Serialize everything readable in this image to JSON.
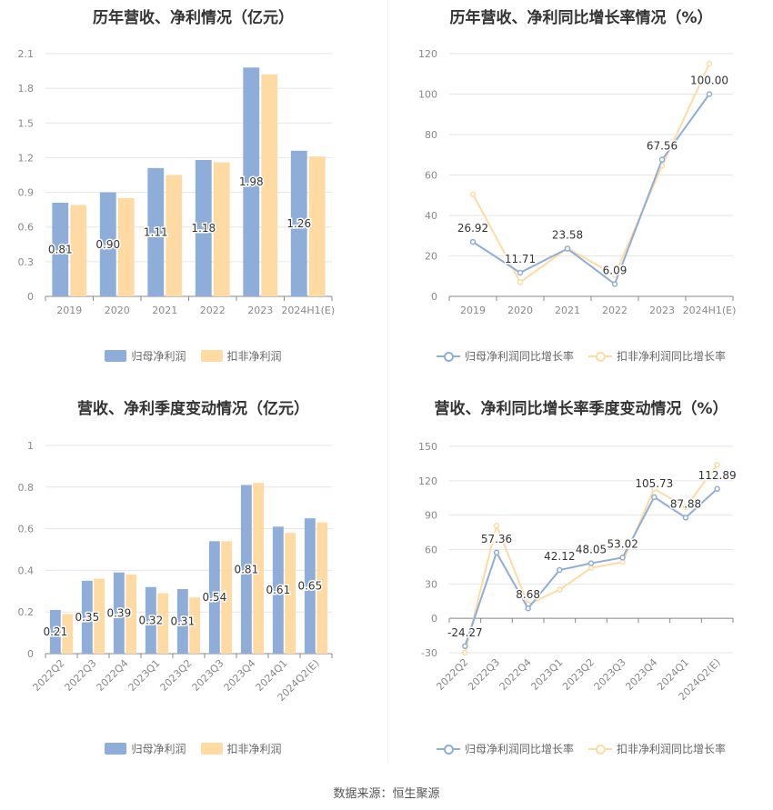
{
  "colors": {
    "primary": "#8EADD9",
    "secondary": "#FFDBA3",
    "label": "#333333",
    "axis_text": "#888888",
    "grid": "#e6e6e6"
  },
  "source": "数据来源：恒生聚源",
  "charts": [
    {
      "title": "历年营收、净利情况（亿元）",
      "legend": [
        "归母净利润",
        "扣非净利润"
      ]
    },
    {
      "title": "历年营收、净利同比增长率情况（%）",
      "legend": [
        "归母净利润同比增长率",
        "扣非净利润同比增长率"
      ]
    },
    {
      "title": "营收、净利季度变动情况（亿元）",
      "legend": [
        "归母净利润",
        "扣非净利润"
      ]
    },
    {
      "title": "营收、净利同比增长率季度变动情况（%）",
      "legend": [
        "归母净利润同比增长率",
        "扣非净利润同比增长率"
      ]
    }
  ],
  "chart_data": [
    {
      "type": "bar",
      "title": "历年营收、净利情况（亿元）",
      "categories": [
        "2019",
        "2020",
        "2021",
        "2022",
        "2023",
        "2024H1(E)"
      ],
      "series": [
        {
          "name": "归母净利润",
          "values": [
            0.81,
            0.9,
            1.11,
            1.18,
            1.98,
            1.26
          ],
          "labels": [
            "0.81",
            "0.90",
            "1.11",
            "1.18",
            "1.98",
            "1.26"
          ]
        },
        {
          "name": "扣非净利润",
          "values": [
            0.79,
            0.85,
            1.05,
            1.16,
            1.92,
            1.21
          ]
        }
      ],
      "yticks": [
        "0",
        "0.3",
        "0.6",
        "0.9",
        "1.2",
        "1.5",
        "1.8",
        "2.1"
      ],
      "ylim": [
        0,
        2.1
      ],
      "grid": true,
      "legend_position": "bottom"
    },
    {
      "type": "line",
      "title": "历年营收、净利同比增长率情况（%）",
      "categories": [
        "2019",
        "2020",
        "2021",
        "2022",
        "2023",
        "2024H1(E)"
      ],
      "series": [
        {
          "name": "归母净利润同比增长率",
          "values": [
            26.92,
            11.71,
            23.58,
            6.09,
            67.56,
            100.0
          ],
          "labels": [
            "26.92",
            "11.71",
            "23.58",
            "6.09",
            "67.56",
            "100.00"
          ]
        },
        {
          "name": "扣非净利润同比增长率",
          "values": [
            50.5,
            7.0,
            23.8,
            10.5,
            64.5,
            115.0
          ]
        }
      ],
      "yticks": [
        "0",
        "20",
        "40",
        "60",
        "80",
        "100",
        "120"
      ],
      "ylim": [
        0,
        120
      ],
      "grid": true,
      "legend_position": "bottom"
    },
    {
      "type": "bar",
      "title": "营收、净利季度变动情况（亿元）",
      "categories": [
        "2022Q2",
        "2022Q3",
        "2022Q4",
        "2023Q1",
        "2023Q2",
        "2023Q3",
        "2023Q4",
        "2024Q1",
        "2024Q2(E)"
      ],
      "series": [
        {
          "name": "归母净利润",
          "values": [
            0.21,
            0.35,
            0.39,
            0.32,
            0.31,
            0.54,
            0.81,
            0.61,
            0.65
          ],
          "labels": [
            "0.21",
            "0.35",
            "0.39",
            "0.32",
            "0.31",
            "0.54",
            "0.81",
            "0.61",
            "0.65"
          ]
        },
        {
          "name": "扣非净利润",
          "values": [
            0.19,
            0.36,
            0.38,
            0.29,
            0.27,
            0.54,
            0.82,
            0.58,
            0.63
          ]
        }
      ],
      "yticks": [
        "0",
        "0.2",
        "0.4",
        "0.6",
        "0.8",
        "1"
      ],
      "ylim": [
        0,
        1
      ],
      "grid": true,
      "legend_position": "bottom"
    },
    {
      "type": "line",
      "title": "营收、净利同比增长率季度变动情况（%）",
      "categories": [
        "2022Q2",
        "2022Q3",
        "2022Q4",
        "2023Q1",
        "2023Q2",
        "2023Q3",
        "2023Q4",
        "2024Q1",
        "2024Q2(E)"
      ],
      "series": [
        {
          "name": "归母净利润同比增长率",
          "values": [
            -24.27,
            57.36,
            8.68,
            42.12,
            48.05,
            53.02,
            105.73,
            87.88,
            112.89
          ],
          "labels": [
            "-24.27",
            "57.36",
            "8.68",
            "42.12",
            "48.05",
            "53.02",
            "105.73",
            "87.88",
            "112.89"
          ]
        },
        {
          "name": "扣非净利润同比增长率",
          "values": [
            -30.0,
            81.0,
            12.0,
            25.0,
            44.0,
            49.0,
            113.0,
            97.0,
            134.0
          ]
        }
      ],
      "yticks": [
        "-30",
        "0",
        "30",
        "60",
        "90",
        "120",
        "150"
      ],
      "ylim": [
        -30,
        150
      ],
      "grid": true,
      "legend_position": "bottom"
    }
  ]
}
